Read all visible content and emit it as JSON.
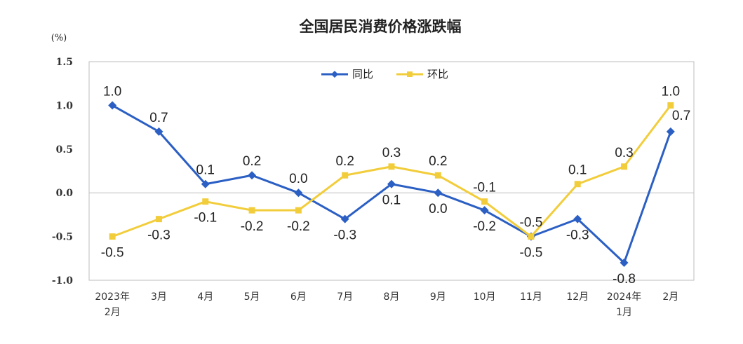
{
  "chart_data": {
    "type": "line",
    "title": "全国居民消费价格涨跌幅",
    "unit": "(%)",
    "categories": [
      [
        "2023年",
        "2月"
      ],
      [
        "3月"
      ],
      [
        "4月"
      ],
      [
        "5月"
      ],
      [
        "6月"
      ],
      [
        "7月"
      ],
      [
        "8月"
      ],
      [
        "9月"
      ],
      [
        "10月"
      ],
      [
        "11月"
      ],
      [
        "12月"
      ],
      [
        "2024年",
        "1月"
      ],
      [
        "2月"
      ]
    ],
    "ylim": [
      -1.0,
      1.5
    ],
    "yticks": [
      "1.5",
      "1.0",
      "0.5",
      "0.0",
      "-0.5",
      "-1.0"
    ],
    "legend_position": "top-center",
    "series": [
      {
        "name": "同比",
        "color": "#2b5fc4",
        "marker": "diamond",
        "values": [
          1.0,
          0.7,
          0.1,
          0.2,
          0.0,
          -0.3,
          0.1,
          0.0,
          -0.2,
          -0.5,
          -0.3,
          -0.8,
          0.7
        ],
        "labels": [
          "1.0",
          "0.7",
          "0.1",
          "0.2",
          "0.0",
          "-0.3",
          "0.1",
          "0.0",
          "-0.2",
          "-0.5",
          "-0.3",
          "-0.8",
          "0.7"
        ],
        "label_side": [
          "above",
          "above",
          "above",
          "above",
          "above",
          "below",
          "below",
          "below",
          "below",
          "below",
          "below",
          "below",
          "right"
        ]
      },
      {
        "name": "环比",
        "color": "#f2cd3b",
        "marker": "square",
        "values": [
          -0.5,
          -0.3,
          -0.1,
          -0.2,
          -0.2,
          0.2,
          0.3,
          0.2,
          -0.1,
          -0.5,
          0.1,
          0.3,
          1.0
        ],
        "labels": [
          "-0.5",
          "-0.3",
          "-0.1",
          "-0.2",
          "-0.2",
          "0.2",
          "0.3",
          "0.2",
          "-0.1",
          "-0.5",
          "0.1",
          "0.3",
          "1.0"
        ],
        "label_side": [
          "below",
          "below",
          "below",
          "below",
          "below",
          "above",
          "above",
          "above",
          "above",
          "above",
          "above",
          "above",
          "above"
        ]
      }
    ]
  }
}
